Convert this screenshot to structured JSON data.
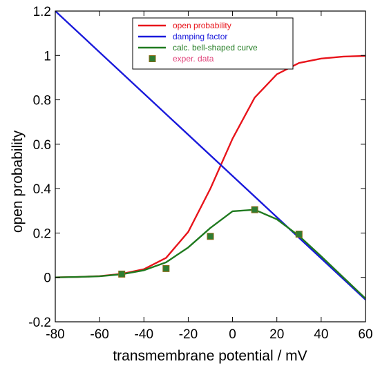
{
  "chart_data": {
    "type": "line",
    "title": "",
    "xlabel": "transmembrane potential / mV",
    "ylabel": "open probability",
    "xlim": [
      -80,
      60
    ],
    "ylim": [
      -0.2,
      1.2
    ],
    "xticks": [
      -80,
      -60,
      -40,
      -20,
      0,
      20,
      40,
      60
    ],
    "yticks": [
      -0.2,
      0,
      0.2,
      0.4,
      0.6,
      0.8,
      1,
      1.2
    ],
    "xtick_labels": [
      "-80",
      "-60",
      "-40",
      "-20",
      "0",
      "20",
      "40",
      "60"
    ],
    "ytick_labels": [
      "-0.2",
      "0",
      "0.2",
      "0.4",
      "0.6",
      "0.8",
      "1",
      "1.2"
    ],
    "grid": false,
    "legend_position": "top-center",
    "series": [
      {
        "name": "open probability",
        "color": "#e8141b",
        "kind": "line",
        "x": [
          -80,
          -70,
          -60,
          -50,
          -40,
          -30,
          -20,
          -10,
          0,
          10,
          20,
          30,
          40,
          50,
          60
        ],
        "y": [
          0.0,
          0.002,
          0.006,
          0.016,
          0.037,
          0.088,
          0.205,
          0.4,
          0.625,
          0.81,
          0.915,
          0.966,
          0.986,
          0.995,
          0.998
        ]
      },
      {
        "name": "damping factor",
        "color": "#1a1adb",
        "kind": "line",
        "x": [
          -80,
          60
        ],
        "y": [
          1.2,
          -0.1
        ]
      },
      {
        "name": "calc. bell-shaped curve",
        "color": "#1f7a1f",
        "kind": "line",
        "x": [
          -80,
          -70,
          -60,
          -50,
          -40,
          -30,
          -20,
          -10,
          0,
          10,
          20,
          30,
          40,
          50,
          60
        ],
        "y": [
          0.0,
          0.002,
          0.005,
          0.014,
          0.032,
          0.068,
          0.135,
          0.223,
          0.298,
          0.305,
          0.262,
          0.187,
          0.095,
          0.0,
          -0.095
        ]
      },
      {
        "name": "exper. data",
        "color": "#2e7d32",
        "marker_edge": "#8b6914",
        "label_color": "#e0457b",
        "kind": "scatter",
        "x": [
          -50,
          -30,
          -10,
          10,
          30
        ],
        "y": [
          0.015,
          0.04,
          0.185,
          0.305,
          0.195
        ]
      }
    ]
  }
}
